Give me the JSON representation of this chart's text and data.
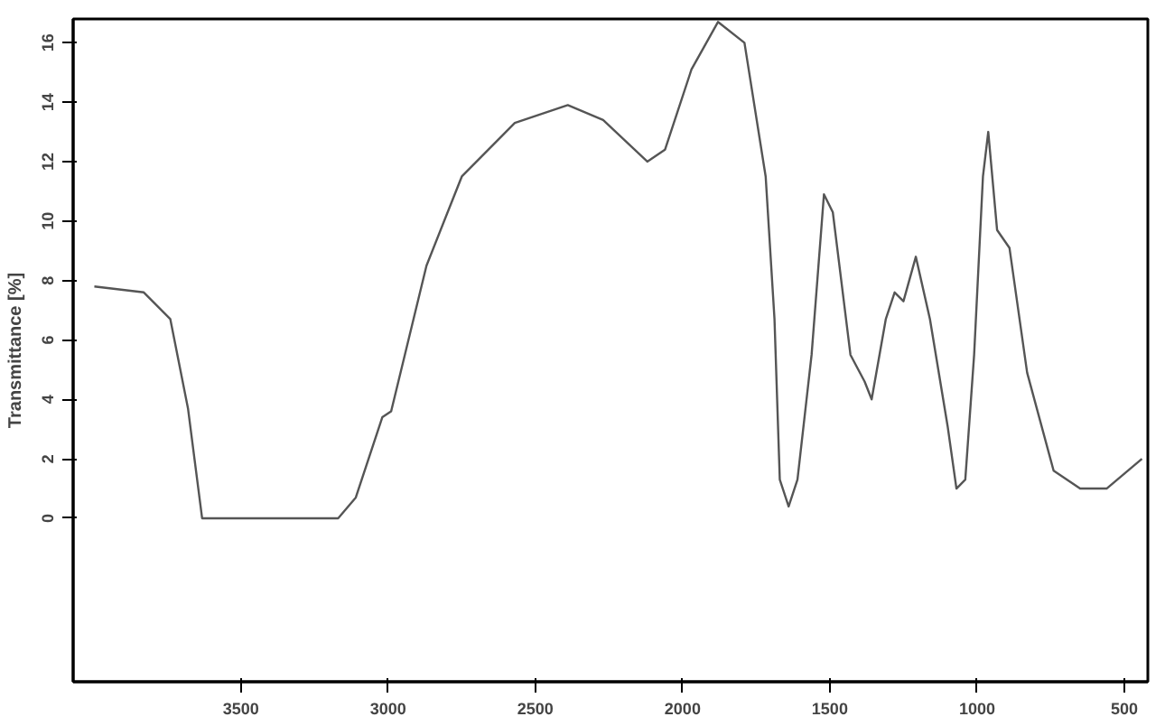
{
  "chart_data": {
    "type": "line",
    "ylabel": "Transmittance [%]",
    "xlim": [
      4070,
      420
    ],
    "xticks": [
      3500,
      3000,
      2500,
      2000,
      1500,
      1000,
      500
    ],
    "ylim": [
      -5.5,
      16.8
    ],
    "yticks": [
      0,
      2,
      4,
      6,
      8,
      10,
      12,
      14,
      16
    ],
    "grid": false,
    "line_style": "solid",
    "series": [
      {
        "color": "#555555",
        "x": [
          3998,
          3830,
          3740,
          3680,
          3632,
          3470,
          3170,
          3110,
          3020,
          2990,
          2870,
          2750,
          2570,
          2390,
          2270,
          2120,
          2060,
          1970,
          1880,
          1790,
          1718,
          1688,
          1670,
          1640,
          1610,
          1562,
          1520,
          1490,
          1430,
          1382,
          1358,
          1310,
          1280,
          1250,
          1208,
          1160,
          1100,
          1070,
          1040,
          1010,
          980,
          962,
          932,
          890,
          830,
          740,
          650,
          560,
          440
        ],
        "values": [
          7.8,
          7.6,
          6.7,
          3.7,
          0,
          0,
          0,
          0.7,
          3.4,
          3.6,
          8.5,
          11.5,
          13.3,
          13.9,
          13.4,
          12.0,
          12.4,
          15.1,
          16.7,
          16.0,
          11.5,
          6.7,
          1.3,
          0.4,
          1.3,
          5.5,
          10.9,
          10.3,
          5.5,
          4.6,
          4.0,
          6.7,
          7.6,
          7.3,
          8.8,
          6.7,
          3.1,
          1.0,
          1.3,
          5.5,
          11.5,
          13.0,
          9.7,
          9.1,
          4.9,
          1.6,
          1.0,
          1.0,
          2.0
        ]
      }
    ]
  }
}
